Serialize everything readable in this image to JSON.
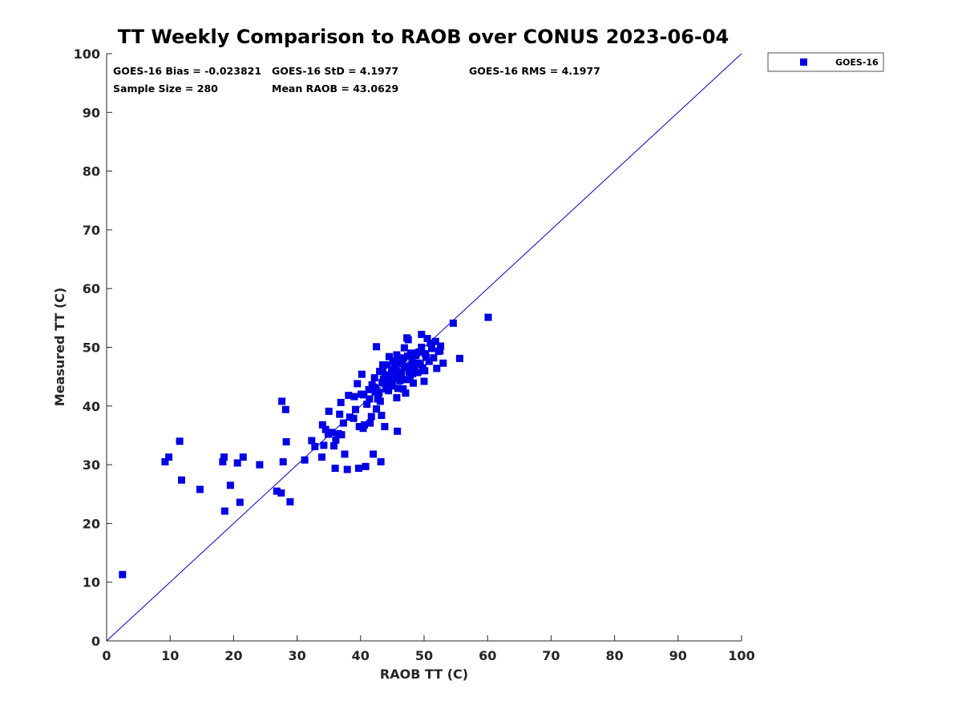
{
  "chart_data": {
    "type": "scatter",
    "title": "TT Weekly Comparison to RAOB over CONUS 2023-06-04",
    "xlabel": "RAOB TT (C)",
    "ylabel": "Measured TT (C)",
    "xlim": [
      0,
      100
    ],
    "ylim": [
      0,
      100
    ],
    "xticks": [
      "0",
      "10",
      "20",
      "30",
      "40",
      "50",
      "60",
      "70",
      "80",
      "90",
      "100"
    ],
    "yticks": [
      "0",
      "10",
      "20",
      "30",
      "40",
      "50",
      "60",
      "70",
      "80",
      "90",
      "100"
    ],
    "grid": false,
    "legend_position": "outside-top-right",
    "reference_line": {
      "from": [
        0,
        0
      ],
      "to": [
        100,
        100
      ],
      "color": "#0000cc"
    },
    "stats": {
      "bias": "GOES-16 Bias = -0.023821",
      "std": "GOES-16 StD = 4.1977",
      "rms": "GOES-16 RMS = 4.1977",
      "sample": "Sample Size = 280",
      "mean": "Mean RAOB = 43.0629"
    },
    "series": [
      {
        "name": "GOES-16",
        "color": "#0000e6",
        "marker": "square",
        "x": [
          2.5,
          9.2,
          9.8,
          11.5,
          11.8,
          14.7,
          18.3,
          18.5,
          18.6,
          19.5,
          20.6,
          21.0,
          21.5,
          24.1,
          26.8,
          27.5,
          27.6,
          27.8,
          28.2,
          28.3,
          28.9,
          31.2,
          32.3,
          32.8,
          33.9,
          34.0,
          34.2,
          34.5,
          34.9,
          35.0,
          35.4,
          35.8,
          36.0,
          36.1,
          36.5,
          36.7,
          36.9,
          37.0,
          37.3,
          37.5,
          37.9,
          38.1,
          38.3,
          38.9,
          39.0,
          39.2,
          39.5,
          39.7,
          39.8,
          40.1,
          40.2,
          40.4,
          40.6,
          40.8,
          41.0,
          41.3,
          41.5,
          41.7,
          42.0,
          42.2,
          42.4,
          42.5,
          42.7,
          42.9,
          43.0,
          43.1,
          43.3,
          43.5,
          43.6,
          43.8,
          44.0,
          44.2,
          44.3,
          44.5,
          44.7,
          44.9,
          45.0,
          45.1,
          45.3,
          45.5,
          45.6,
          45.8,
          46.0,
          46.2,
          46.3,
          46.5,
          46.7,
          46.9,
          47.0,
          47.2,
          47.4,
          47.5,
          47.7,
          47.9,
          48.1,
          48.3,
          48.5,
          48.7,
          49.0,
          49.2,
          49.4,
          49.6,
          49.8,
          50.0,
          50.2,
          50.5,
          50.8,
          51.2,
          51.5,
          51.8,
          52.0,
          52.3,
          52.6,
          53.0,
          54.6,
          55.6,
          60.1,
          42.5,
          43.2,
          45.7,
          47.3,
          48.0,
          49.6,
          50.1,
          42.1,
          41.4,
          43.9,
          44.8,
          46.4,
          46.6,
          48.8,
          44.1,
          45.4,
          47.8,
          43.7,
          45.9,
          46.8,
          44.6,
          45.2,
          46.1,
          47.1,
          42.8,
          43.4,
          48.2,
          49.1,
          50.3,
          51.0,
          52.5,
          41.8,
          40.5,
          44.4,
          45.7,
          46.9,
          47.6,
          43.5,
          42.3
        ],
        "y": [
          11.3,
          30.5,
          31.3,
          34.0,
          27.4,
          25.8,
          30.5,
          31.3,
          22.1,
          26.5,
          30.3,
          23.6,
          31.3,
          30.0,
          25.5,
          25.2,
          40.8,
          30.5,
          39.4,
          33.9,
          23.7,
          30.8,
          34.1,
          33.1,
          31.3,
          36.8,
          33.3,
          36.0,
          35.2,
          39.1,
          35.5,
          33.2,
          29.4,
          34.2,
          35.3,
          38.6,
          40.6,
          35.1,
          37.1,
          31.8,
          29.2,
          41.8,
          38.1,
          37.9,
          41.6,
          39.4,
          43.8,
          29.4,
          36.5,
          42.0,
          45.4,
          36.2,
          36.8,
          29.7,
          40.3,
          42.8,
          37.1,
          38.2,
          31.8,
          44.8,
          43.0,
          39.5,
          41.2,
          42.3,
          45.9,
          40.8,
          38.4,
          46.3,
          44.6,
          36.5,
          42.9,
          47.0,
          45.3,
          48.4,
          44.0,
          46.0,
          43.5,
          47.6,
          45.2,
          44.7,
          46.3,
          35.7,
          48.1,
          44.3,
          45.8,
          47.2,
          42.9,
          49.9,
          46.7,
          44.5,
          48.5,
          51.3,
          45.0,
          49.0,
          47.8,
          43.9,
          46.3,
          48.6,
          45.7,
          49.2,
          47.1,
          50.0,
          46.5,
          44.2,
          48.9,
          51.5,
          47.6,
          49.8,
          48.2,
          51.0,
          46.4,
          49.3,
          50.2,
          47.3,
          54.1,
          48.1,
          55.1,
          50.1,
          30.5,
          41.4,
          51.6,
          46.6,
          52.2,
          46.0,
          43.2,
          41.2,
          45.1,
          43.4,
          45.6,
          47.5,
          49.0,
          44.3,
          46.9,
          45.0,
          44.1,
          43.0,
          48.2,
          43.8,
          46.1,
          44.7,
          42.2,
          41.9,
          44.0,
          45.5,
          47.3,
          48.3,
          50.7,
          49.4,
          43.6,
          41.9,
          42.6,
          48.7,
          46.6,
          45.9,
          47.0,
          42.4
        ]
      }
    ]
  }
}
